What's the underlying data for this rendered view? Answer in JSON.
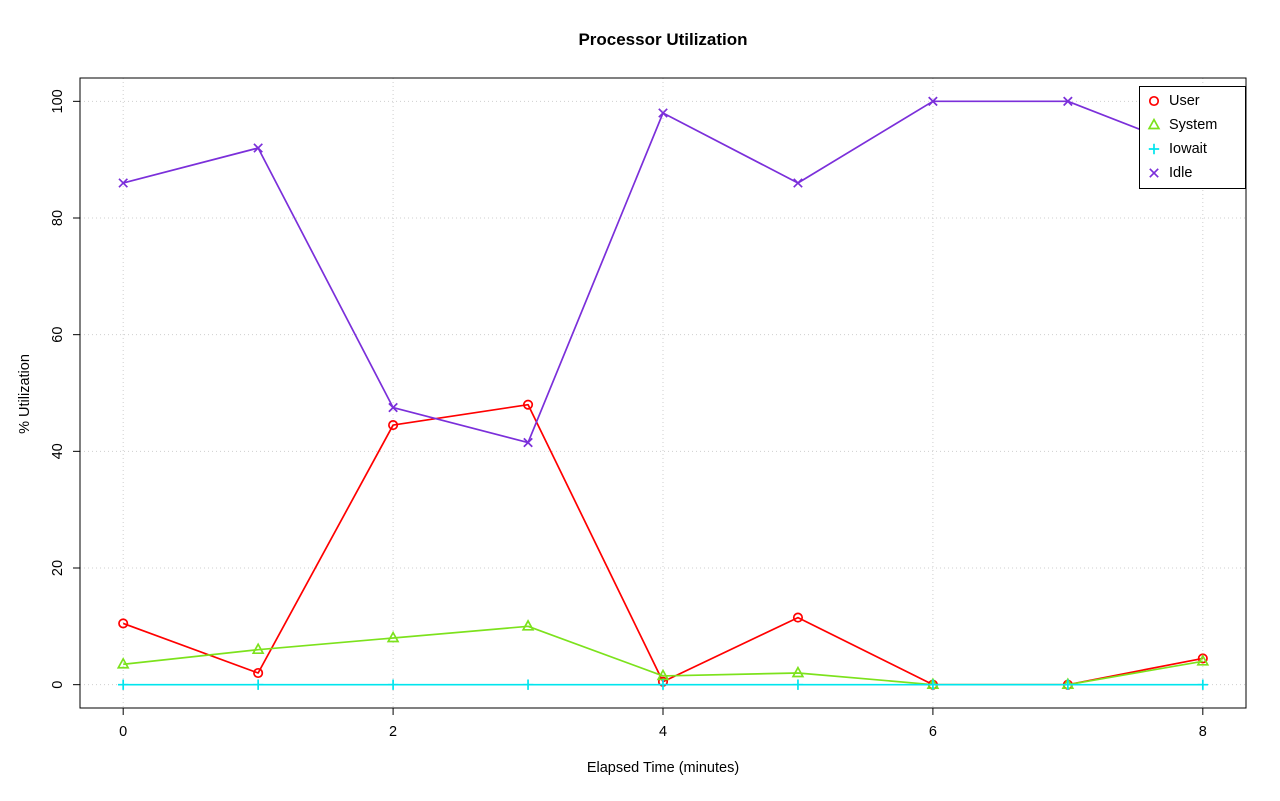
{
  "chart_data": {
    "type": "line",
    "title": "Processor Utilization",
    "xlabel": "Elapsed Time (minutes)",
    "ylabel": "% Utilization",
    "x": [
      0,
      1,
      2,
      3,
      4,
      5,
      6,
      7,
      8
    ],
    "xlim": [
      0,
      8
    ],
    "ylim": [
      0,
      100
    ],
    "xticks": [
      0,
      2,
      4,
      6,
      8
    ],
    "yticks": [
      0,
      20,
      40,
      60,
      80,
      100
    ],
    "grid": "dotted",
    "grid_color": "#CFCFCF",
    "legend_position": "top-right",
    "series": [
      {
        "name": "User",
        "color": "#FF0000",
        "marker": "circle",
        "values": [
          10.5,
          2,
          44.5,
          48,
          0.5,
          11.5,
          0,
          0,
          4.5
        ]
      },
      {
        "name": "System",
        "color": "#7CE21C",
        "marker": "triangle",
        "values": [
          3.5,
          6,
          8,
          10,
          1.5,
          2,
          0,
          0,
          4
        ]
      },
      {
        "name": "Iowait",
        "color": "#00E5EE",
        "marker": "plus",
        "values": [
          0,
          0,
          0,
          0,
          0,
          0,
          0,
          0,
          0
        ]
      },
      {
        "name": "Idle",
        "color": "#7B2FDA",
        "marker": "x",
        "values": [
          86,
          92,
          47.5,
          41.5,
          98,
          86,
          100,
          100,
          91
        ]
      }
    ]
  }
}
